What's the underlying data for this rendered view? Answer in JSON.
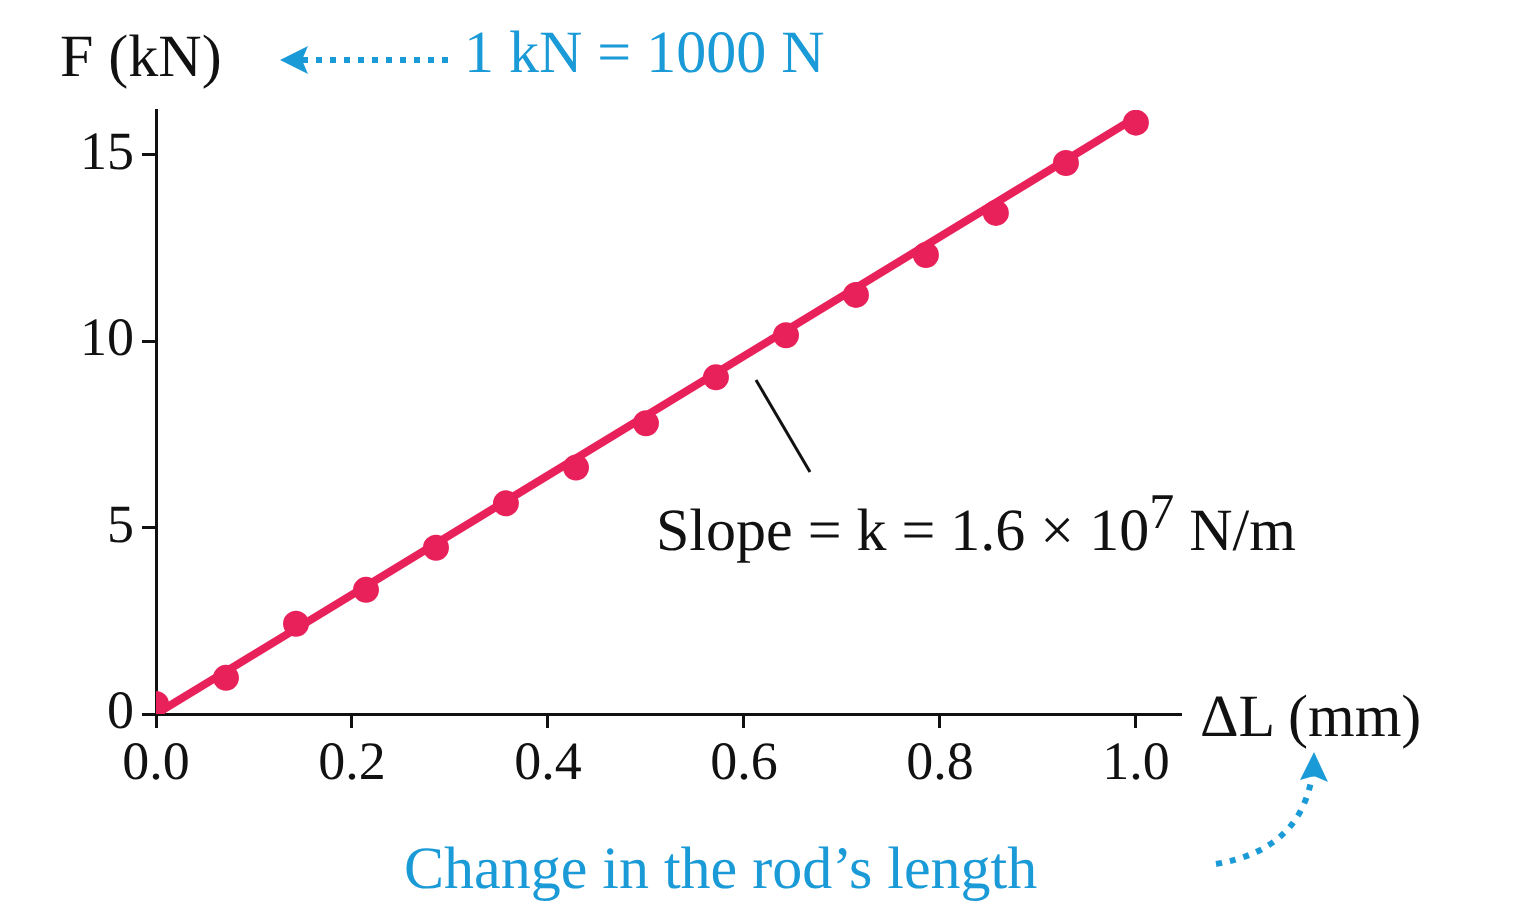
{
  "chart_data": {
    "type": "scatter",
    "xlabel": "ΔL (mm)",
    "ylabel": "F (kN)",
    "annotations": [
      "1 kN = 1000 N",
      "Change in the rod’s length",
      "Slope = k = 1.6 × 10$^{7}$ N/m"
    ],
    "x": [
      0,
      0.0714,
      0.1429,
      0.2143,
      0.2857,
      0.3571,
      0.4286,
      0.5,
      0.5714,
      0.6429,
      0.7143,
      0.7857,
      0.8571,
      0.9286,
      1.0
    ],
    "series": [
      {
        "marker": "circle",
        "color": "#e8215a",
        "values": [
          0.27,
          0.97,
          2.42,
          3.33,
          4.46,
          5.65,
          6.61,
          7.8,
          9.03,
          10.16,
          11.24,
          12.31,
          13.44,
          14.78,
          15.86
        ]
      },
      {
        "type": "line",
        "color": "#e8215a",
        "x": [
          0,
          1.0
        ],
        "values": [
          0,
          16
        ]
      }
    ],
    "xlim": [
      0,
      1.045
    ],
    "ylim": [
      0,
      16.2
    ],
    "xticks": [
      {
        "value": 0,
        "label": "0.0"
      },
      {
        "value": 0.2,
        "label": "0.2"
      },
      {
        "value": 0.4,
        "label": "0.4"
      },
      {
        "value": 0.6,
        "label": "0.6"
      },
      {
        "value": 0.8,
        "label": "0.8"
      },
      {
        "value": 1.0,
        "label": "1.0"
      }
    ],
    "yticks": [
      0,
      5,
      10,
      15
    ],
    "grid": false,
    "legend": false
  }
}
